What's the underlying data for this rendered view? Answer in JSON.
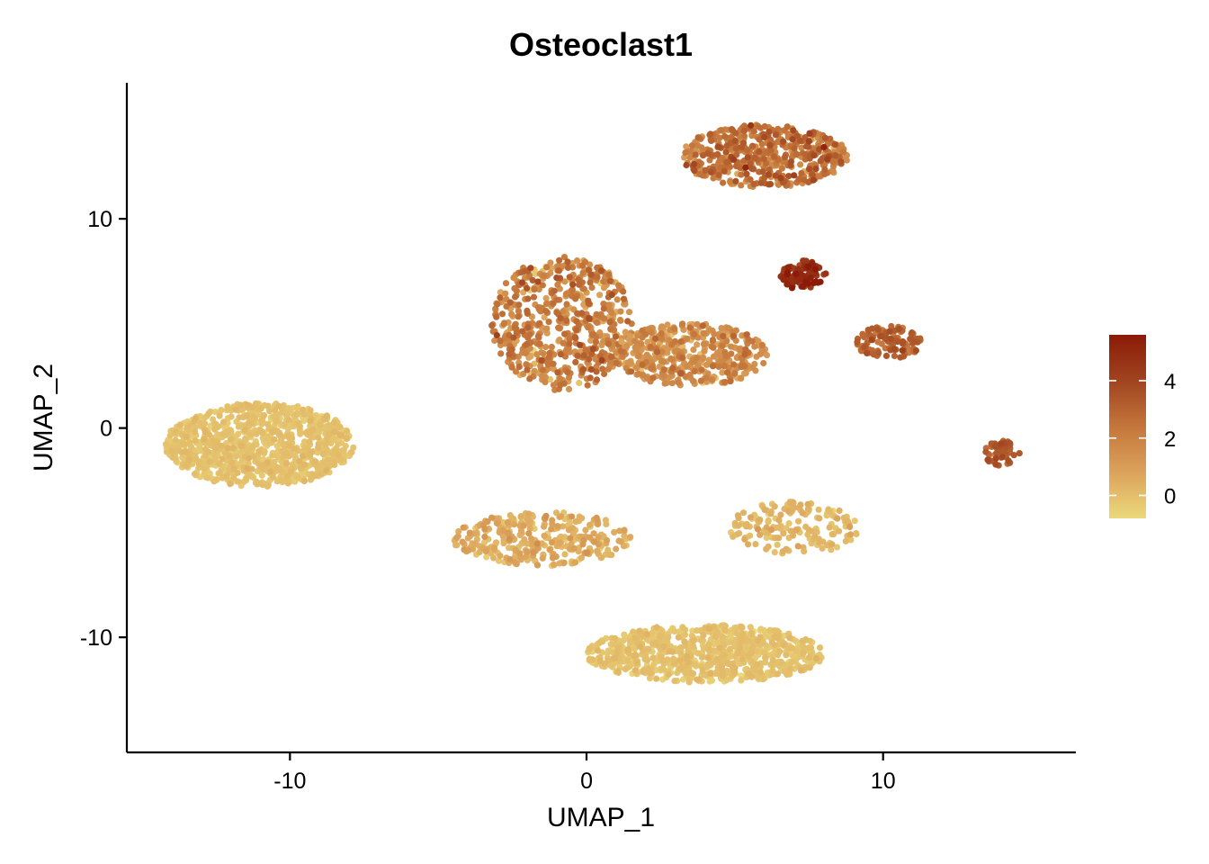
{
  "chart_data": {
    "type": "scatter",
    "title": "Osteoclast1",
    "xlabel": "UMAP_1",
    "ylabel": "UMAP_2",
    "xlim": [
      -15.5,
      16.5
    ],
    "ylim": [
      -15.5,
      16.5
    ],
    "x_ticks": [
      -10,
      0,
      10
    ],
    "x_tick_labels": [
      "-10",
      "0",
      "10"
    ],
    "y_ticks": [
      -10,
      0,
      10
    ],
    "y_tick_labels": [
      "-10",
      "0",
      "10"
    ],
    "grid": false,
    "legend": {
      "placement": "right",
      "type": "continuous",
      "min": -0.8,
      "max": 5.6,
      "ticks": [
        0,
        2,
        4
      ],
      "tick_labels": [
        "0",
        "2",
        "4"
      ],
      "colors": [
        "#EBD97A",
        "#DCA35C",
        "#C4763B",
        "#A04420",
        "#8B1A08"
      ]
    },
    "clusters": [
      {
        "id": "c1",
        "cx": -11.0,
        "cy": -0.8,
        "rx": 3.2,
        "ry": 2.0,
        "n": 900,
        "mean": -0.2,
        "spread": 0.2
      },
      {
        "id": "c2",
        "cx": -0.8,
        "cy": 5.0,
        "rx": 2.4,
        "ry": 3.2,
        "n": 600,
        "mean": 1.8,
        "spread": 0.8
      },
      {
        "id": "c3",
        "cx": 3.5,
        "cy": 3.5,
        "rx": 2.6,
        "ry": 1.5,
        "n": 450,
        "mean": 1.4,
        "spread": 0.7
      },
      {
        "id": "c4",
        "cx": 6.0,
        "cy": 13.0,
        "rx": 2.8,
        "ry": 1.5,
        "n": 500,
        "mean": 2.3,
        "spread": 0.8
      },
      {
        "id": "c5",
        "cx": 7.3,
        "cy": 7.3,
        "rx": 0.8,
        "ry": 0.7,
        "n": 90,
        "mean": 4.8,
        "spread": 0.6
      },
      {
        "id": "c6",
        "cx": 10.2,
        "cy": 4.1,
        "rx": 1.1,
        "ry": 0.8,
        "n": 110,
        "mean": 3.0,
        "spread": 0.5
      },
      {
        "id": "c7",
        "cx": 14.0,
        "cy": -1.2,
        "rx": 0.6,
        "ry": 0.6,
        "n": 60,
        "mean": 3.1,
        "spread": 0.4
      },
      {
        "id": "c8",
        "cx": 7.0,
        "cy": -4.8,
        "rx": 2.2,
        "ry": 1.3,
        "n": 160,
        "mean": 0.1,
        "spread": 0.3
      },
      {
        "id": "c9",
        "cx": -1.5,
        "cy": -5.3,
        "rx": 3.0,
        "ry": 1.3,
        "n": 320,
        "mean": 0.4,
        "spread": 0.4
      },
      {
        "id": "c10",
        "cx": 4.0,
        "cy": -10.8,
        "rx": 4.0,
        "ry": 1.4,
        "n": 800,
        "mean": -0.2,
        "spread": 0.2
      }
    ]
  }
}
